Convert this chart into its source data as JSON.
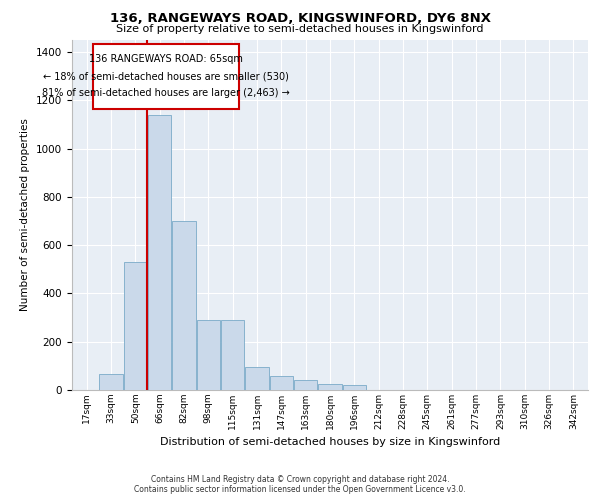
{
  "title1": "136, RANGEWAYS ROAD, KINGSWINFORD, DY6 8NX",
  "title2": "Size of property relative to semi-detached houses in Kingswinford",
  "xlabel": "Distribution of semi-detached houses by size in Kingswinford",
  "ylabel": "Number of semi-detached properties",
  "categories": [
    "17sqm",
    "33sqm",
    "50sqm",
    "66sqm",
    "82sqm",
    "98sqm",
    "115sqm",
    "131sqm",
    "147sqm",
    "163sqm",
    "180sqm",
    "196sqm",
    "212sqm",
    "228sqm",
    "245sqm",
    "261sqm",
    "277sqm",
    "293sqm",
    "310sqm",
    "326sqm",
    "342sqm"
  ],
  "values": [
    0,
    65,
    530,
    1140,
    700,
    290,
    290,
    95,
    60,
    40,
    25,
    20,
    0,
    0,
    0,
    0,
    0,
    0,
    0,
    0,
    0
  ],
  "bar_color": "#cad9ea",
  "bar_edge_color": "#7aaac8",
  "annotation_text1": "136 RANGEWAYS ROAD: 65sqm",
  "annotation_text2": "← 18% of semi-detached houses are smaller (530)",
  "annotation_text3": "81% of semi-detached houses are larger (2,463) →",
  "vline_color": "#cc0000",
  "box_color": "#cc0000",
  "ylim": [
    0,
    1450
  ],
  "yticks": [
    0,
    200,
    400,
    600,
    800,
    1000,
    1200,
    1400
  ],
  "footer1": "Contains HM Land Registry data © Crown copyright and database right 2024.",
  "footer2": "Contains public sector information licensed under the Open Government Licence v3.0.",
  "plot_bg_color": "#e8eef5"
}
